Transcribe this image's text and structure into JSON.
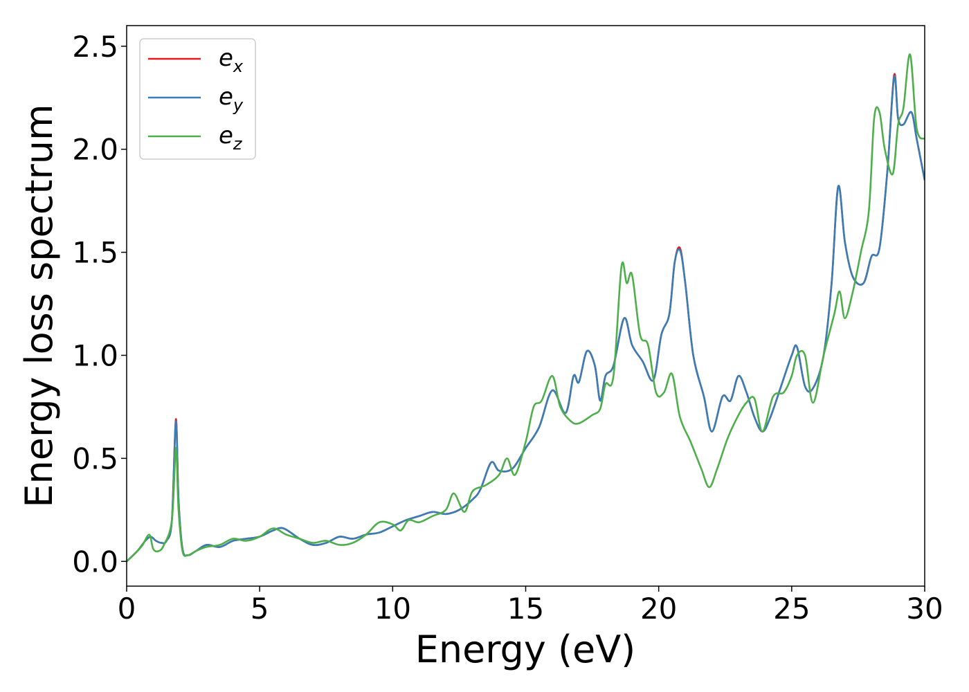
{
  "chart_data": {
    "type": "line",
    "xlabel": "Energy (eV)",
    "ylabel": "Energy loss spectrum",
    "xlim": [
      0,
      30
    ],
    "ylim": [
      -0.12,
      2.6
    ],
    "xticks": [
      0,
      5,
      10,
      15,
      20,
      25,
      30
    ],
    "xtick_labels": [
      "0",
      "5",
      "10",
      "15",
      "20",
      "25",
      "30"
    ],
    "yticks": [
      0.0,
      0.5,
      1.0,
      1.5,
      2.0,
      2.5
    ],
    "ytick_labels": [
      "0.0",
      "0.5",
      "1.0",
      "1.5",
      "2.0",
      "2.5"
    ],
    "grid": false,
    "legend_position": "top-left",
    "series": [
      {
        "name": "e",
        "subscript": "x",
        "color": "#e41a1c",
        "x": [
          0,
          0.4,
          0.7,
          0.9,
          1.1,
          1.3,
          1.5,
          1.7,
          1.85,
          1.95,
          2.1,
          2.3,
          2.6,
          3.0,
          3.5,
          4.0,
          4.5,
          5.0,
          5.5,
          5.9,
          6.5,
          7.0,
          7.5,
          8.0,
          8.5,
          9.0,
          9.5,
          10.0,
          10.5,
          11.0,
          11.5,
          12.0,
          12.5,
          13.0,
          13.3,
          13.7,
          14.0,
          14.5,
          15.0,
          15.5,
          16.0,
          16.5,
          16.8,
          17.0,
          17.3,
          17.6,
          17.8,
          18.0,
          18.3,
          18.7,
          19.0,
          19.4,
          19.8,
          20.1,
          20.4,
          20.6,
          20.8,
          21.0,
          21.3,
          21.7,
          22.0,
          22.4,
          22.7,
          23.0,
          23.3,
          23.6,
          23.9,
          24.2,
          24.6,
          25.0,
          25.2,
          25.5,
          25.8,
          26.2,
          26.5,
          26.75,
          27.0,
          27.3,
          27.7,
          28.0,
          28.3,
          28.6,
          28.85,
          29.0,
          29.2,
          29.5,
          29.7,
          30.0
        ],
        "y": [
          0.0,
          0.05,
          0.1,
          0.12,
          0.1,
          0.09,
          0.1,
          0.2,
          0.69,
          0.3,
          0.06,
          0.03,
          0.05,
          0.08,
          0.07,
          0.1,
          0.11,
          0.12,
          0.15,
          0.16,
          0.11,
          0.08,
          0.09,
          0.12,
          0.11,
          0.13,
          0.14,
          0.17,
          0.2,
          0.22,
          0.24,
          0.23,
          0.25,
          0.3,
          0.35,
          0.48,
          0.44,
          0.45,
          0.55,
          0.65,
          0.83,
          0.72,
          0.9,
          0.87,
          1.02,
          0.95,
          0.78,
          0.9,
          0.95,
          1.18,
          1.05,
          0.97,
          0.88,
          1.1,
          1.2,
          1.45,
          1.52,
          1.35,
          1.0,
          0.8,
          0.63,
          0.8,
          0.78,
          0.9,
          0.82,
          0.7,
          0.63,
          0.7,
          0.85,
          1.0,
          1.04,
          0.85,
          0.84,
          1.0,
          1.35,
          1.82,
          1.55,
          1.38,
          1.35,
          1.48,
          1.52,
          1.9,
          2.36,
          2.15,
          2.12,
          2.18,
          2.05,
          1.85
        ]
      },
      {
        "name": "e",
        "subscript": "y",
        "color": "#377eb8",
        "x": [
          0,
          0.4,
          0.7,
          0.9,
          1.1,
          1.3,
          1.5,
          1.7,
          1.85,
          1.95,
          2.1,
          2.3,
          2.6,
          3.0,
          3.5,
          4.0,
          4.5,
          5.0,
          5.5,
          5.9,
          6.5,
          7.0,
          7.5,
          8.0,
          8.5,
          9.0,
          9.5,
          10.0,
          10.5,
          11.0,
          11.5,
          12.0,
          12.5,
          13.0,
          13.3,
          13.7,
          14.0,
          14.5,
          15.0,
          15.5,
          16.0,
          16.5,
          16.8,
          17.0,
          17.3,
          17.6,
          17.8,
          18.0,
          18.3,
          18.7,
          19.0,
          19.4,
          19.8,
          20.1,
          20.4,
          20.6,
          20.8,
          21.0,
          21.3,
          21.7,
          22.0,
          22.4,
          22.7,
          23.0,
          23.3,
          23.6,
          23.9,
          24.2,
          24.6,
          25.0,
          25.2,
          25.5,
          25.8,
          26.2,
          26.5,
          26.75,
          27.0,
          27.3,
          27.7,
          28.0,
          28.3,
          28.6,
          28.85,
          29.0,
          29.2,
          29.5,
          29.7,
          30.0
        ],
        "y": [
          0.0,
          0.05,
          0.1,
          0.12,
          0.1,
          0.09,
          0.1,
          0.2,
          0.68,
          0.3,
          0.06,
          0.03,
          0.05,
          0.08,
          0.07,
          0.1,
          0.11,
          0.12,
          0.15,
          0.16,
          0.11,
          0.08,
          0.09,
          0.12,
          0.11,
          0.13,
          0.14,
          0.17,
          0.2,
          0.22,
          0.24,
          0.23,
          0.25,
          0.3,
          0.35,
          0.48,
          0.44,
          0.45,
          0.55,
          0.65,
          0.83,
          0.72,
          0.9,
          0.87,
          1.02,
          0.95,
          0.78,
          0.9,
          0.95,
          1.18,
          1.05,
          0.97,
          0.88,
          1.1,
          1.2,
          1.45,
          1.51,
          1.35,
          1.0,
          0.8,
          0.63,
          0.8,
          0.78,
          0.9,
          0.82,
          0.7,
          0.63,
          0.7,
          0.85,
          1.0,
          1.04,
          0.85,
          0.84,
          1.0,
          1.35,
          1.82,
          1.55,
          1.38,
          1.35,
          1.48,
          1.52,
          1.9,
          2.35,
          2.15,
          2.12,
          2.18,
          2.05,
          1.85
        ]
      },
      {
        "name": "e",
        "subscript": "z",
        "color": "#4daf4a",
        "x": [
          0,
          0.4,
          0.6,
          0.85,
          1.0,
          1.2,
          1.4,
          1.7,
          1.85,
          1.95,
          2.1,
          2.3,
          2.6,
          3.0,
          3.5,
          4.0,
          4.5,
          5.0,
          5.5,
          6.0,
          6.5,
          7.0,
          7.5,
          8.0,
          8.5,
          9.0,
          9.5,
          10.0,
          10.3,
          10.6,
          11.0,
          11.5,
          12.0,
          12.3,
          12.7,
          13.0,
          13.5,
          14.0,
          14.3,
          14.6,
          15.0,
          15.3,
          15.6,
          16.0,
          16.3,
          16.7,
          17.0,
          17.5,
          17.8,
          18.0,
          18.3,
          18.6,
          18.8,
          19.0,
          19.3,
          19.6,
          19.9,
          20.2,
          20.5,
          20.8,
          21.2,
          21.6,
          21.9,
          22.2,
          22.6,
          23.0,
          23.3,
          23.6,
          23.9,
          24.3,
          24.7,
          25.0,
          25.2,
          25.5,
          25.8,
          26.2,
          26.6,
          26.8,
          27.0,
          27.3,
          27.6,
          27.9,
          28.1,
          28.3,
          28.5,
          28.8,
          29.0,
          29.2,
          29.45,
          29.7,
          30.0
        ],
        "y": [
          0.0,
          0.05,
          0.08,
          0.13,
          0.06,
          0.05,
          0.08,
          0.2,
          0.55,
          0.25,
          0.05,
          0.03,
          0.05,
          0.07,
          0.08,
          0.11,
          0.1,
          0.12,
          0.16,
          0.13,
          0.11,
          0.09,
          0.1,
          0.08,
          0.09,
          0.13,
          0.19,
          0.18,
          0.15,
          0.2,
          0.19,
          0.22,
          0.25,
          0.33,
          0.24,
          0.34,
          0.37,
          0.42,
          0.5,
          0.42,
          0.58,
          0.75,
          0.78,
          0.9,
          0.75,
          0.68,
          0.67,
          0.71,
          0.74,
          0.86,
          0.9,
          1.43,
          1.35,
          1.39,
          1.1,
          1.05,
          0.82,
          0.82,
          0.91,
          0.7,
          0.58,
          0.45,
          0.36,
          0.45,
          0.6,
          0.71,
          0.77,
          0.79,
          0.63,
          0.8,
          0.82,
          0.9,
          1.0,
          1.0,
          0.77,
          1.0,
          1.2,
          1.31,
          1.18,
          1.31,
          1.5,
          1.7,
          2.15,
          2.18,
          2.0,
          1.88,
          2.12,
          2.2,
          2.46,
          2.1,
          2.05
        ]
      }
    ]
  }
}
